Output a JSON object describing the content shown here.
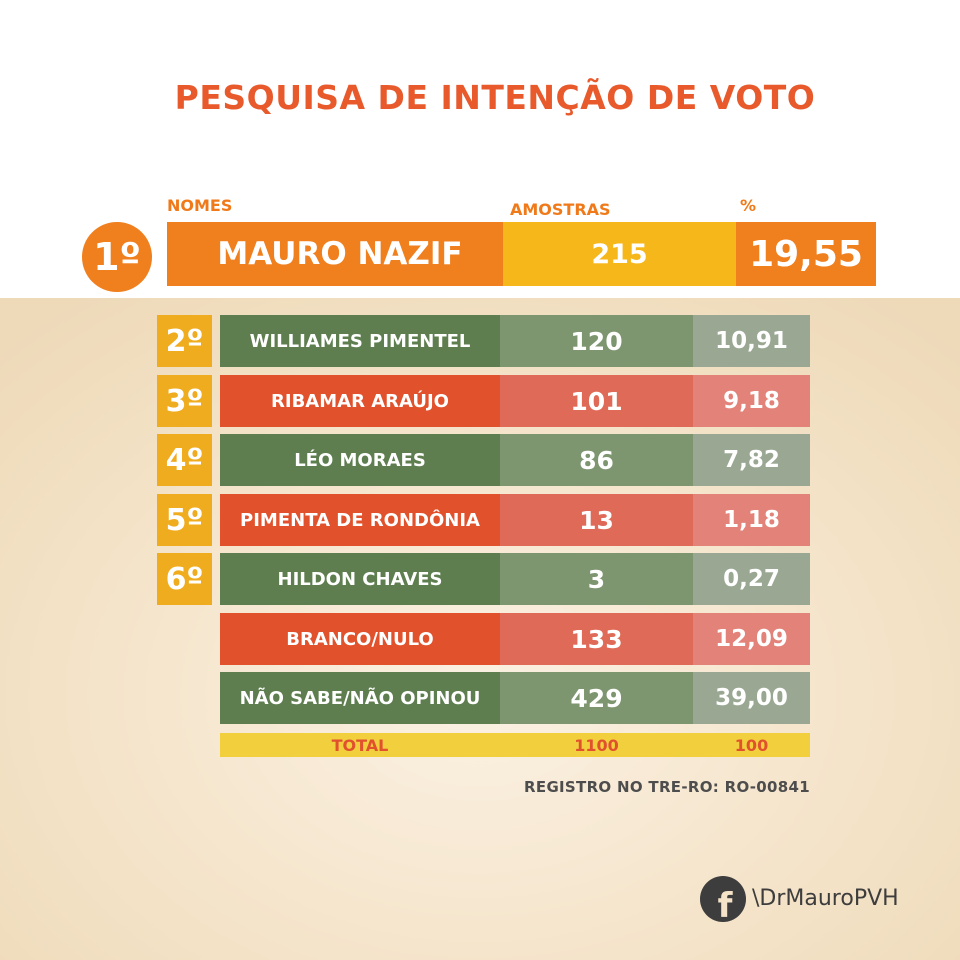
{
  "title": "PESQUISA DE INTENÇÃO DE VOTO",
  "headers": {
    "names": "NOMES",
    "samples": "AMOSTRAS",
    "percent": "%"
  },
  "footer": {
    "registration": "REGISTRO NO TRE-RO: RO-00841",
    "handle": "\\DrMauroPVH",
    "facebook_icon": "facebook-icon",
    "fb_glyph": "f"
  },
  "colors": {
    "orange": "#f07f1d",
    "yellow": "#f5b719",
    "green": "#5e7e4f",
    "red": "#e0512c",
    "total_bg": "#f1cf3d"
  },
  "chart_data": {
    "type": "table",
    "title": "PESQUISA DE INTENÇÃO DE VOTO",
    "columns": [
      "NOMES",
      "AMOSTRAS",
      "%"
    ],
    "first": {
      "rank": "1º",
      "name": "MAURO NAZIF",
      "samples": "215",
      "percent": "19,55"
    },
    "rows": [
      {
        "rank": "2º",
        "name": "WILLIAMES PIMENTEL",
        "samples": "120",
        "percent": "10,91",
        "color": "green"
      },
      {
        "rank": "3º",
        "name": "RIBAMAR ARAÚJO",
        "samples": "101",
        "percent": "9,18",
        "color": "red"
      },
      {
        "rank": "4º",
        "name": "LÉO MORAES",
        "samples": "86",
        "percent": "7,82",
        "color": "green"
      },
      {
        "rank": "5º",
        "name": "PIMENTA DE RONDÔNIA",
        "samples": "13",
        "percent": "1,18",
        "color": "red"
      },
      {
        "rank": "6º",
        "name": "HILDON CHAVES",
        "samples": "3",
        "percent": "0,27",
        "color": "green"
      },
      {
        "rank": "",
        "name": "BRANCO/NULO",
        "samples": "133",
        "percent": "12,09",
        "color": "red"
      },
      {
        "rank": "",
        "name": "NÃO SABE/NÃO OPINOU",
        "samples": "429",
        "percent": "39,00",
        "color": "green"
      }
    ],
    "total": {
      "label": "TOTAL",
      "samples": "1100",
      "percent": "100"
    }
  }
}
